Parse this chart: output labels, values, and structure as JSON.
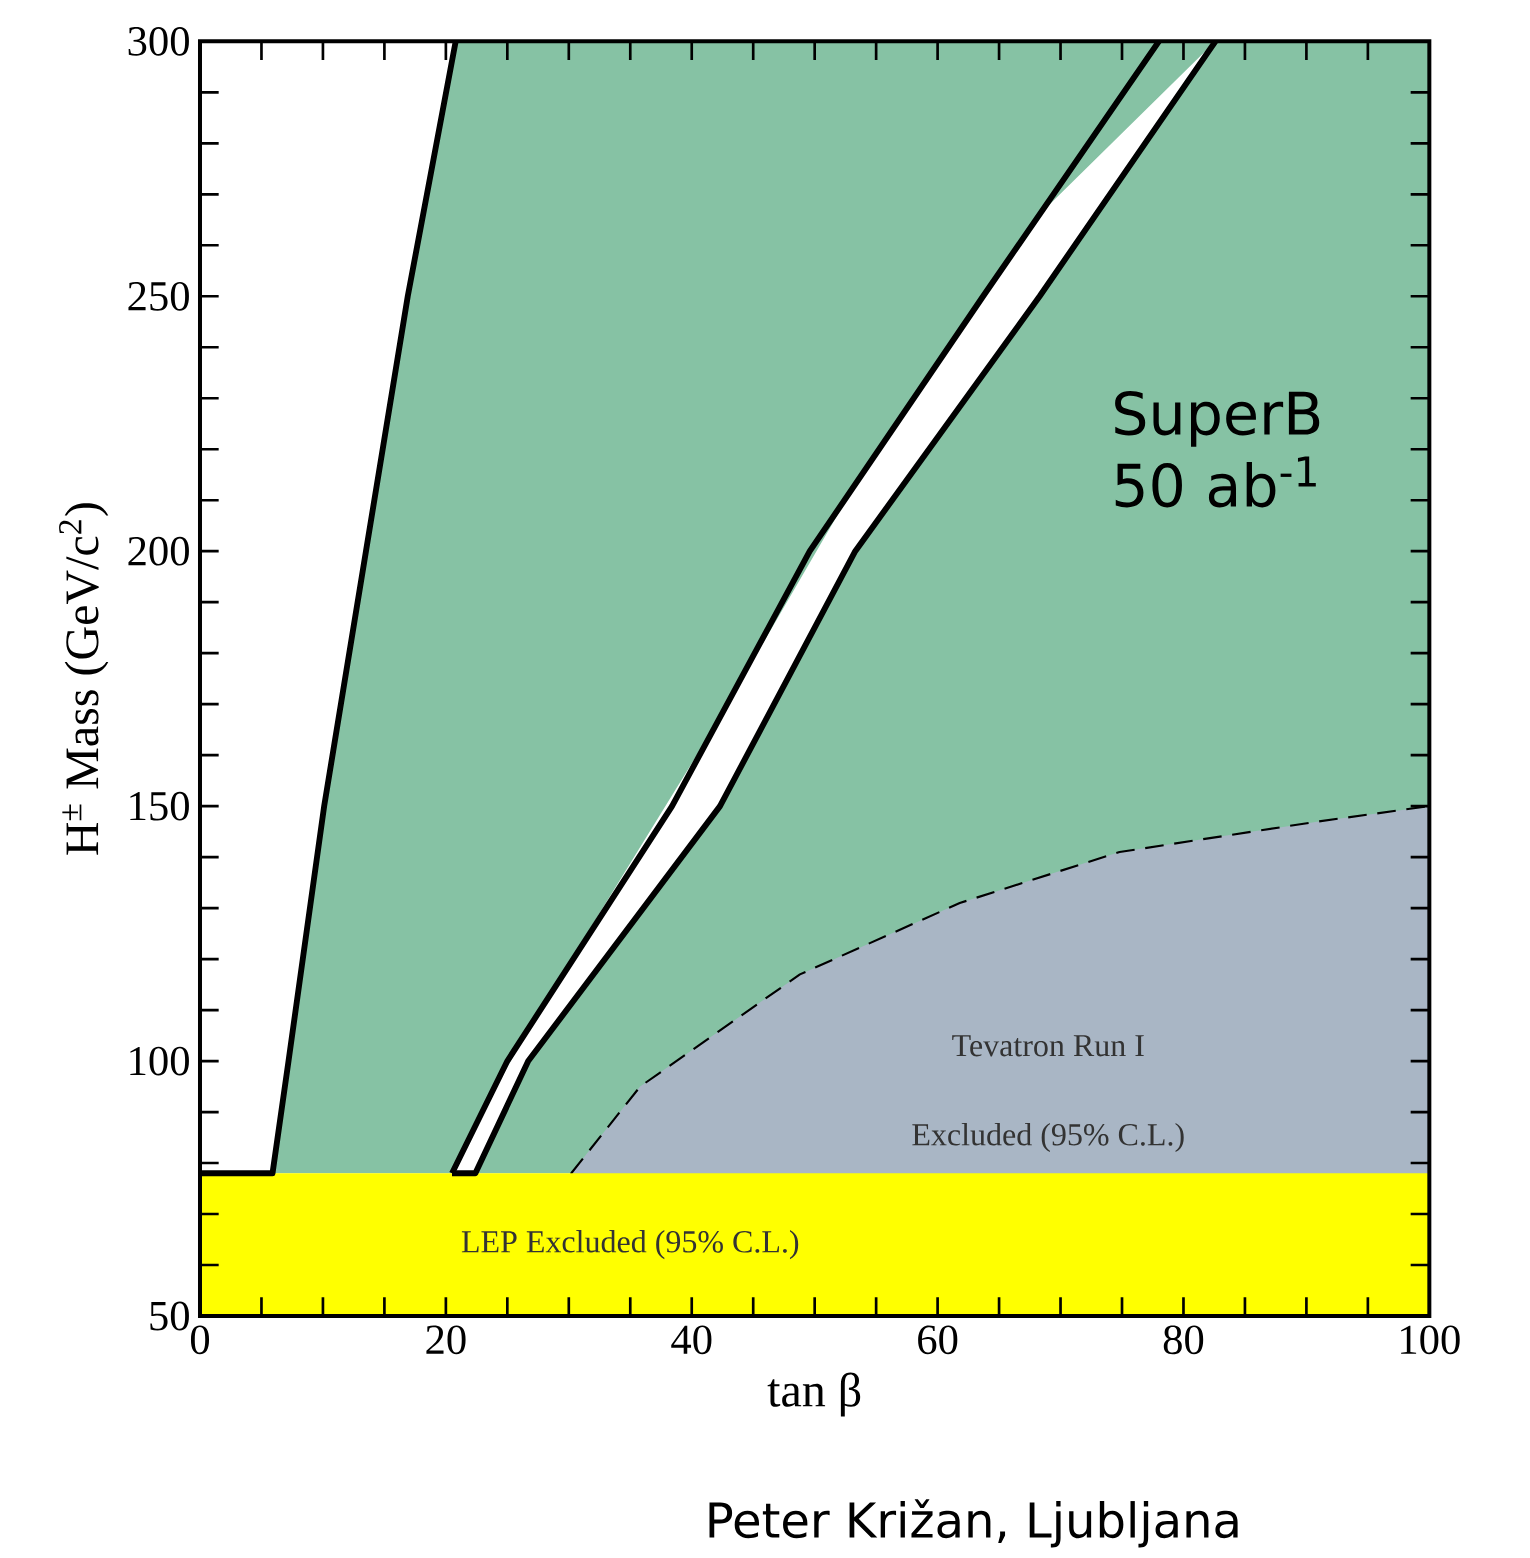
{
  "chart_data": {
    "type": "line",
    "xlabel": "tan β",
    "ylabel": "H$^{±}$ Mass (GeV/c$^{2}$)",
    "xlim": [
      0,
      100
    ],
    "ylim": [
      50,
      300
    ],
    "xticks": [
      0,
      {
        "value": 5,
        "label": null
      },
      {
        "value": 10,
        "label": null
      },
      {
        "value": 15,
        "label": null
      },
      20,
      {
        "value": 25,
        "label": null
      },
      {
        "value": 30,
        "label": null
      },
      {
        "value": 35,
        "label": null
      },
      40,
      {
        "value": 45,
        "label": null
      },
      {
        "value": 50,
        "label": null
      },
      {
        "value": 55,
        "label": null
      },
      60,
      {
        "value": 65,
        "label": null
      },
      {
        "value": 70,
        "label": null
      },
      {
        "value": 75,
        "label": null
      },
      80,
      {
        "value": 85,
        "label": null
      },
      {
        "value": 90,
        "label": null
      },
      {
        "value": 95,
        "label": null
      },
      100
    ],
    "yticks": [
      50,
      {
        "value": 60,
        "label": null
      },
      {
        "value": 70,
        "label": null
      },
      {
        "value": 80,
        "label": null
      },
      {
        "value": 90,
        "label": null
      },
      100,
      {
        "value": 110,
        "label": null
      },
      {
        "value": 120,
        "label": null
      },
      {
        "value": 130,
        "label": null
      },
      {
        "value": 140,
        "label": null
      },
      150,
      {
        "value": 160,
        "label": null
      },
      {
        "value": 170,
        "label": null
      },
      {
        "value": 180,
        "label": null
      },
      {
        "value": 190,
        "label": null
      },
      200,
      {
        "value": 210,
        "label": null
      },
      {
        "value": 220,
        "label": null
      },
      {
        "value": 230,
        "label": null
      },
      {
        "value": 240,
        "label": null
      },
      250,
      {
        "value": 260,
        "label": null
      },
      {
        "value": 270,
        "label": null
      },
      {
        "value": 280,
        "label": null
      },
      {
        "value": 290,
        "label": null
      },
      300
    ],
    "series": [
      {
        "type": "area",
        "color": "#a9b6c5",
        "line_style": "dashed",
        "x": [
          30.2,
          35.8,
          48.8,
          61.8,
          74.8,
          91,
          100
        ],
        "values": [
          78,
          95,
          117,
          131,
          141,
          147,
          150
        ]
      },
      {
        "color": "#000000",
        "line_style": "solid",
        "x": [
          0,
          5.9,
          7.2,
          10.1,
          13.5,
          16.9,
          20.8
        ],
        "values": [
          78,
          78,
          100,
          150,
          200,
          250,
          300
        ],
        "lower": [
          78,
          78,
          100,
          150,
          200,
          250,
          300
        ],
        "upper": [
          300,
          300,
          300,
          300,
          300,
          300,
          300
        ]
      },
      {
        "color": "#000000",
        "line_style": "solid",
        "x": [
          20.5,
          22.4,
          26.7,
          42.3,
          53.3,
          68.3,
          82.6
        ],
        "values": [
          78,
          78,
          100,
          150,
          200,
          250,
          300
        ],
        "lower": [
          78,
          78,
          100,
          150,
          200,
          250,
          300
        ],
        "upper": [
          78,
          87.3,
          106.3,
          167.4,
          213.1,
          266.1,
          300
        ]
      },
      {
        "color": "#000000",
        "line_style": "solid",
        "x": [
          20.5,
          25.0,
          38.4,
          49.6,
          63.7,
          78.0
        ],
        "values": [
          78,
          100,
          150,
          200,
          250,
          300
        ]
      }
    ],
    "bands": [
      {
        "axis": "y",
        "from": 78,
        "to": 300,
        "color": "#86c2a4"
      },
      {
        "axis": "y",
        "from": 50,
        "to": 78,
        "label": "LEP Excluded (95% C.L.)",
        "color": "#ffff00"
      }
    ],
    "annotations": [
      "SuperB 50 ab$^{-1}$",
      "Tevatron Run I",
      "Excluded (95% C.L.)",
      "Peter Križan, Ljubljana"
    ]
  }
}
